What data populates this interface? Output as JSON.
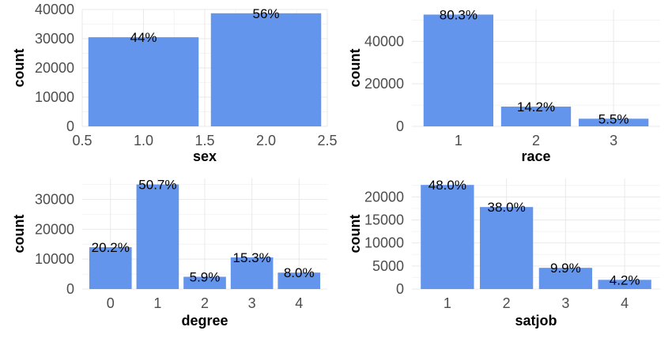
{
  "chart_data": [
    {
      "type": "bar",
      "xlabel": "sex",
      "ylabel": "count",
      "categories": [
        1,
        2
      ],
      "values": [
        30500,
        38700
      ],
      "labels": [
        "44%",
        "56%"
      ],
      "xlim": [
        0.5,
        2.5
      ],
      "xticks": [
        "0.5",
        "1.0",
        "1.5",
        "2.0",
        "2.5"
      ],
      "ylim": [
        0,
        40000
      ],
      "yticks": [
        "0",
        "10000",
        "20000",
        "30000",
        "40000"
      ],
      "grid": true
    },
    {
      "type": "bar",
      "xlabel": "race",
      "ylabel": "count",
      "categories": [
        "1",
        "2",
        "3"
      ],
      "values": [
        52600,
        9300,
        3600
      ],
      "labels": [
        "80.3%",
        "14.2%",
        "5.5%"
      ],
      "ylim": [
        0,
        55000
      ],
      "yticks": [
        "0",
        "20000",
        "40000"
      ],
      "grid": true
    },
    {
      "type": "bar",
      "xlabel": "degree",
      "ylabel": "count",
      "categories": [
        "0",
        "1",
        "2",
        "3",
        "4"
      ],
      "values": [
        14000,
        35000,
        4100,
        10600,
        5500
      ],
      "labels": [
        "20.2%",
        "50.7%",
        "5.9%",
        "15.3%",
        "8.0%"
      ],
      "ylim": [
        0,
        37000
      ],
      "yticks": [
        "0",
        "10000",
        "20000",
        "30000"
      ],
      "grid": true
    },
    {
      "type": "bar",
      "xlabel": "satjob",
      "ylabel": "count",
      "categories": [
        "1",
        "2",
        "3",
        "4"
      ],
      "values": [
        22600,
        17800,
        4600,
        2000
      ],
      "labels": [
        "48.0%",
        "38.0%",
        "9.9%",
        "4.2%"
      ],
      "ylim": [
        0,
        24000
      ],
      "yticks": [
        "0",
        "5000",
        "10000",
        "15000",
        "20000"
      ],
      "grid": true
    }
  ],
  "colors": {
    "bar": "#6495ED",
    "grid": "#e9e9e9",
    "tick": "#4d4d4d"
  }
}
